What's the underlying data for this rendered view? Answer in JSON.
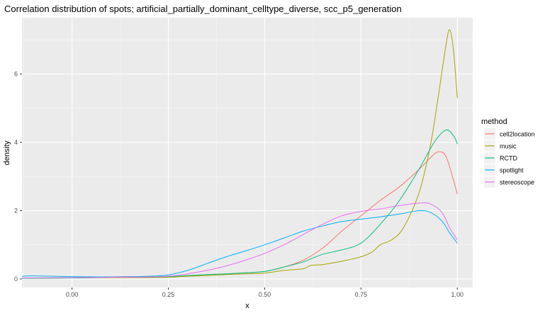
{
  "chart_data": {
    "type": "line",
    "title": "Correlation distribution of spots; artificial_partially_dominant_celltype_diverse, scc_p5_generation",
    "xlabel": "x",
    "ylabel": "density",
    "xlim": [
      -0.13,
      1.04
    ],
    "ylim": [
      -0.25,
      7.65
    ],
    "x_ticks": [
      0.0,
      0.25,
      0.5,
      0.75,
      1.0
    ],
    "x_tick_labels": [
      "0.00",
      "0.25",
      "0.50",
      "0.75",
      "1.00"
    ],
    "y_ticks": [
      0,
      2,
      4,
      6
    ],
    "y_tick_labels": [
      "0",
      "2",
      "4",
      "6"
    ],
    "grid": true,
    "legend": {
      "title": "method",
      "placement": "right"
    },
    "series": [
      {
        "name": "cell2location",
        "color": "#F8766D",
        "points": [
          [
            -0.13,
            0.02
          ],
          [
            0.0,
            0.04
          ],
          [
            0.1,
            0.06
          ],
          [
            0.15,
            0.07
          ],
          [
            0.2,
            0.05
          ],
          [
            0.25,
            0.06
          ],
          [
            0.3,
            0.09
          ],
          [
            0.35,
            0.13
          ],
          [
            0.4,
            0.15
          ],
          [
            0.45,
            0.18
          ],
          [
            0.5,
            0.22
          ],
          [
            0.55,
            0.35
          ],
          [
            0.6,
            0.55
          ],
          [
            0.65,
            0.9
          ],
          [
            0.7,
            1.4
          ],
          [
            0.75,
            1.85
          ],
          [
            0.8,
            2.3
          ],
          [
            0.85,
            2.7
          ],
          [
            0.9,
            3.2
          ],
          [
            0.93,
            3.55
          ],
          [
            0.95,
            3.72
          ],
          [
            0.97,
            3.6
          ],
          [
            0.99,
            2.9
          ],
          [
            1.0,
            2.48
          ]
        ]
      },
      {
        "name": "music",
        "color": "#A3A500",
        "points": [
          [
            -0.13,
            0.02
          ],
          [
            0.0,
            0.03
          ],
          [
            0.1,
            0.04
          ],
          [
            0.2,
            0.04
          ],
          [
            0.25,
            0.05
          ],
          [
            0.3,
            0.08
          ],
          [
            0.35,
            0.1
          ],
          [
            0.4,
            0.13
          ],
          [
            0.45,
            0.15
          ],
          [
            0.5,
            0.17
          ],
          [
            0.55,
            0.25
          ],
          [
            0.6,
            0.3
          ],
          [
            0.62,
            0.4
          ],
          [
            0.65,
            0.42
          ],
          [
            0.7,
            0.52
          ],
          [
            0.75,
            0.65
          ],
          [
            0.78,
            0.8
          ],
          [
            0.8,
            1.0
          ],
          [
            0.83,
            1.15
          ],
          [
            0.86,
            1.5
          ],
          [
            0.9,
            2.5
          ],
          [
            0.93,
            3.9
          ],
          [
            0.95,
            5.3
          ],
          [
            0.97,
            6.8
          ],
          [
            0.98,
            7.3
          ],
          [
            0.99,
            6.7
          ],
          [
            1.0,
            5.3
          ]
        ]
      },
      {
        "name": "RCTD",
        "color": "#00BF7D",
        "points": [
          [
            -0.13,
            0.02
          ],
          [
            0.0,
            0.03
          ],
          [
            0.1,
            0.05
          ],
          [
            0.2,
            0.06
          ],
          [
            0.25,
            0.07
          ],
          [
            0.3,
            0.1
          ],
          [
            0.35,
            0.13
          ],
          [
            0.4,
            0.15
          ],
          [
            0.45,
            0.18
          ],
          [
            0.5,
            0.22
          ],
          [
            0.55,
            0.35
          ],
          [
            0.6,
            0.5
          ],
          [
            0.65,
            0.72
          ],
          [
            0.7,
            0.85
          ],
          [
            0.75,
            1.05
          ],
          [
            0.8,
            1.6
          ],
          [
            0.85,
            2.3
          ],
          [
            0.9,
            3.2
          ],
          [
            0.94,
            4.0
          ],
          [
            0.97,
            4.36
          ],
          [
            0.99,
            4.2
          ],
          [
            1.0,
            3.95
          ]
        ]
      },
      {
        "name": "spotlight",
        "color": "#00B0F6",
        "points": [
          [
            -0.13,
            0.08
          ],
          [
            -0.1,
            0.09
          ],
          [
            0.0,
            0.07
          ],
          [
            0.1,
            0.06
          ],
          [
            0.2,
            0.08
          ],
          [
            0.25,
            0.12
          ],
          [
            0.3,
            0.25
          ],
          [
            0.35,
            0.45
          ],
          [
            0.4,
            0.65
          ],
          [
            0.45,
            0.82
          ],
          [
            0.5,
            1.0
          ],
          [
            0.55,
            1.2
          ],
          [
            0.6,
            1.4
          ],
          [
            0.65,
            1.55
          ],
          [
            0.7,
            1.68
          ],
          [
            0.75,
            1.75
          ],
          [
            0.8,
            1.82
          ],
          [
            0.85,
            1.9
          ],
          [
            0.9,
            2.0
          ],
          [
            0.93,
            1.95
          ],
          [
            0.96,
            1.7
          ],
          [
            0.98,
            1.35
          ],
          [
            1.0,
            1.05
          ]
        ]
      },
      {
        "name": "stereoscope",
        "color": "#E76BF3",
        "points": [
          [
            -0.13,
            0.03
          ],
          [
            0.0,
            0.04
          ],
          [
            0.1,
            0.05
          ],
          [
            0.2,
            0.06
          ],
          [
            0.25,
            0.08
          ],
          [
            0.3,
            0.15
          ],
          [
            0.35,
            0.25
          ],
          [
            0.4,
            0.38
          ],
          [
            0.45,
            0.55
          ],
          [
            0.5,
            0.75
          ],
          [
            0.55,
            1.0
          ],
          [
            0.6,
            1.3
          ],
          [
            0.65,
            1.6
          ],
          [
            0.7,
            1.85
          ],
          [
            0.75,
            1.98
          ],
          [
            0.8,
            2.05
          ],
          [
            0.85,
            2.15
          ],
          [
            0.9,
            2.22
          ],
          [
            0.93,
            2.2
          ],
          [
            0.96,
            1.95
          ],
          [
            0.98,
            1.5
          ],
          [
            1.0,
            1.15
          ]
        ]
      }
    ]
  }
}
